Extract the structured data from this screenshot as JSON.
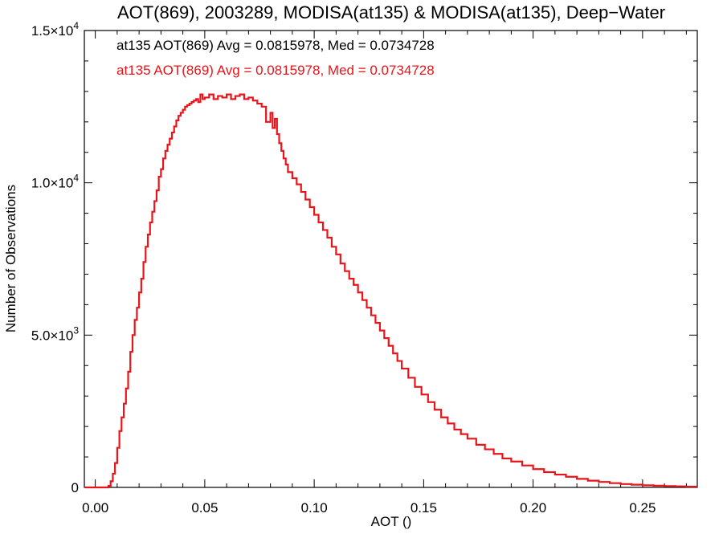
{
  "chart_data": {
    "type": "line",
    "title": "AOT(869), 2003289, MODISA(at135) & MODISA(at135), Deep−Water",
    "xlabel": "AOT ()",
    "ylabel": "Number of Observations",
    "xlim": [
      -0.005,
      0.275
    ],
    "ylim": [
      0,
      15000
    ],
    "grid": false,
    "x_ticks": [
      {
        "value": 0.0,
        "label": "0.00"
      },
      {
        "value": 0.05,
        "label": "0.05"
      },
      {
        "value": 0.1,
        "label": "0.10"
      },
      {
        "value": 0.15,
        "label": "0.15"
      },
      {
        "value": 0.2,
        "label": "0.20"
      },
      {
        "value": 0.25,
        "label": "0.25"
      }
    ],
    "y_ticks": [
      {
        "value": 0,
        "mant": "0",
        "exp": ""
      },
      {
        "value": 5000,
        "mant": "5.0×10",
        "exp": "3"
      },
      {
        "value": 10000,
        "mant": "1.0×10",
        "exp": "4"
      },
      {
        "value": 15000,
        "mant": "1.5×10",
        "exp": "4"
      }
    ],
    "annotations": [
      {
        "text": "at135 AOT(869) Avg = 0.0815978, Med = 0.0734728",
        "color": "#000000"
      },
      {
        "text": "at135 AOT(869) Avg = 0.0815978, Med = 0.0734728",
        "color": "#e8141a"
      }
    ],
    "series": [
      {
        "color": "#e8141a",
        "step": true,
        "x": [
          -0.005,
          0.005,
          0.006,
          0.007,
          0.008,
          0.009,
          0.01,
          0.011,
          0.012,
          0.013,
          0.014,
          0.015,
          0.016,
          0.017,
          0.018,
          0.019,
          0.02,
          0.021,
          0.022,
          0.023,
          0.024,
          0.025,
          0.026,
          0.027,
          0.028,
          0.029,
          0.03,
          0.031,
          0.032,
          0.033,
          0.034,
          0.035,
          0.036,
          0.037,
          0.038,
          0.039,
          0.04,
          0.041,
          0.042,
          0.043,
          0.044,
          0.045,
          0.046,
          0.047,
          0.048,
          0.049,
          0.05,
          0.052,
          0.054,
          0.056,
          0.058,
          0.06,
          0.062,
          0.064,
          0.066,
          0.068,
          0.07,
          0.072,
          0.074,
          0.076,
          0.078,
          0.08,
          0.081,
          0.082,
          0.083,
          0.084,
          0.085,
          0.086,
          0.087,
          0.088,
          0.09,
          0.092,
          0.094,
          0.096,
          0.098,
          0.1,
          0.102,
          0.104,
          0.106,
          0.108,
          0.11,
          0.112,
          0.114,
          0.116,
          0.118,
          0.12,
          0.122,
          0.124,
          0.126,
          0.128,
          0.13,
          0.132,
          0.134,
          0.136,
          0.138,
          0.14,
          0.143,
          0.146,
          0.149,
          0.152,
          0.155,
          0.158,
          0.161,
          0.164,
          0.167,
          0.17,
          0.174,
          0.178,
          0.182,
          0.186,
          0.19,
          0.195,
          0.2,
          0.205,
          0.21,
          0.215,
          0.22,
          0.225,
          0.23,
          0.235,
          0.24,
          0.245,
          0.25,
          0.255,
          0.26,
          0.265,
          0.27,
          0.275
        ],
        "y": [
          0,
          0,
          50,
          200,
          450,
          800,
          1300,
          1850,
          2300,
          2750,
          3250,
          3800,
          4450,
          5000,
          5500,
          5900,
          6400,
          6850,
          7400,
          7900,
          8300,
          8700,
          9050,
          9400,
          9750,
          10200,
          10450,
          10800,
          11050,
          11250,
          11450,
          11650,
          11850,
          12050,
          12200,
          12300,
          12400,
          12500,
          12550,
          12600,
          12650,
          12700,
          12750,
          12650,
          12900,
          12750,
          12800,
          12900,
          12750,
          12850,
          12800,
          12900,
          12750,
          12850,
          12900,
          12750,
          12800,
          12700,
          12600,
          12500,
          12000,
          12300,
          11800,
          12100,
          11600,
          11300,
          11050,
          10800,
          10600,
          10350,
          10150,
          9950,
          9700,
          9450,
          9200,
          8950,
          8700,
          8450,
          8200,
          7900,
          7650,
          7350,
          7100,
          6850,
          6650,
          6400,
          6150,
          5900,
          5650,
          5400,
          5150,
          4900,
          4650,
          4400,
          4150,
          3900,
          3600,
          3300,
          3050,
          2800,
          2550,
          2300,
          2100,
          1900,
          1750,
          1600,
          1400,
          1250,
          1100,
          950,
          850,
          720,
          600,
          500,
          420,
          350,
          280,
          220,
          180,
          140,
          110,
          90,
          70,
          55,
          45,
          35,
          25,
          25
        ]
      }
    ]
  }
}
